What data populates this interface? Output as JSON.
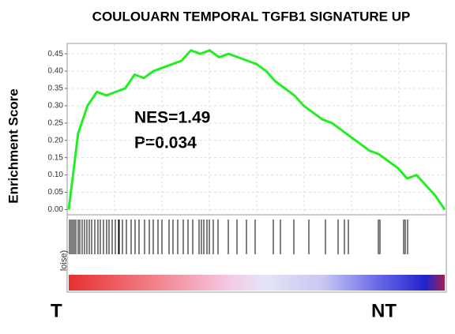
{
  "chart_data": {
    "type": "line",
    "title": "COULOUARN TEMPORAL TGFB1 SIGNATURE UP",
    "y_label": "Enrichment Score",
    "annotations": [
      "NES=1.49",
      "P=0.034"
    ],
    "side_label": "loise)",
    "left_label": "T",
    "right_label": "NT",
    "color": "#22ee22",
    "values": [
      0.0,
      0.22,
      0.3,
      0.34,
      0.33,
      0.34,
      0.35,
      0.39,
      0.38,
      0.4,
      0.41,
      0.42,
      0.43,
      0.46,
      0.45,
      0.46,
      0.44,
      0.45,
      0.44,
      0.43,
      0.42,
      0.4,
      0.37,
      0.35,
      0.33,
      0.3,
      0.28,
      0.26,
      0.25,
      0.23,
      0.21,
      0.19,
      0.17,
      0.16,
      0.14,
      0.12,
      0.09,
      0.1,
      0.07,
      0.04,
      0.0
    ],
    "ylim": [
      -0.015,
      0.48
    ],
    "yticks": [
      {
        "value": 0,
        "label": "0.00"
      },
      {
        "value": 0.05,
        "label": "0.05"
      },
      {
        "value": 0.1,
        "label": "0.10"
      },
      {
        "value": 0.15,
        "label": "0.15"
      },
      {
        "value": 0.2,
        "label": "0.20"
      },
      {
        "value": 0.25,
        "label": "0.25"
      },
      {
        "value": 0.3,
        "label": "0.30"
      },
      {
        "value": 0.35,
        "label": "0.35"
      },
      {
        "value": 0.4,
        "label": "0.40"
      },
      {
        "value": 0.45,
        "label": "0.45"
      }
    ],
    "grid": true
  }
}
